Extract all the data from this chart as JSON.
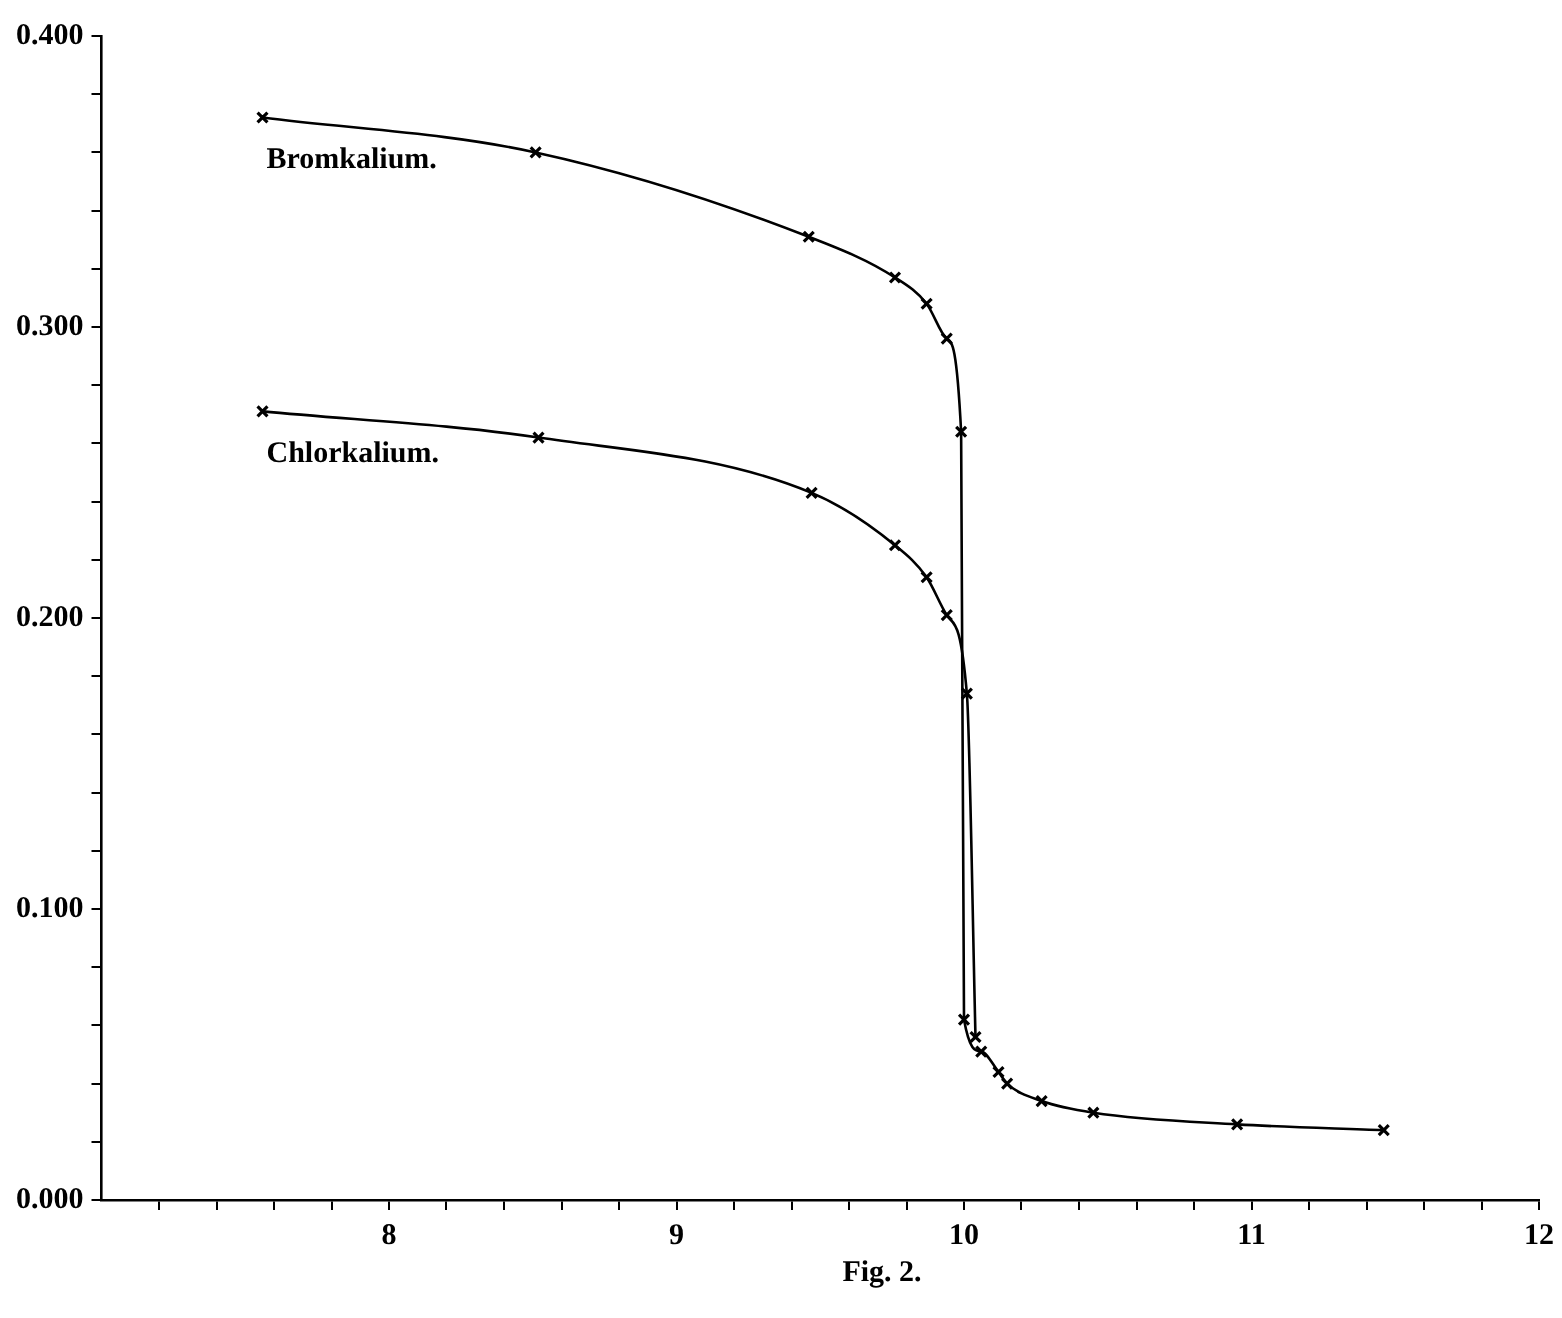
{
  "chart_data": {
    "type": "line",
    "annotations": [
      "Fig. 2."
    ],
    "xlim": [
      7,
      12
    ],
    "xticks": [
      {
        "value": 7.2,
        "label": null
      },
      {
        "value": 7.4,
        "label": null
      },
      {
        "value": 7.6,
        "label": null
      },
      {
        "value": 7.8,
        "label": null
      },
      8,
      {
        "value": 8.2,
        "label": null
      },
      {
        "value": 8.4,
        "label": null
      },
      {
        "value": 8.6,
        "label": null
      },
      {
        "value": 8.8,
        "label": null
      },
      9,
      {
        "value": 9.2,
        "label": null
      },
      {
        "value": 9.4,
        "label": null
      },
      {
        "value": 9.6,
        "label": null
      },
      {
        "value": 9.8,
        "label": null
      },
      10,
      {
        "value": 10.2,
        "label": null
      },
      {
        "value": 10.4,
        "label": null
      },
      {
        "value": 10.6,
        "label": null
      },
      {
        "value": 10.8,
        "label": null
      },
      11,
      {
        "value": 11.2,
        "label": null
      },
      {
        "value": 11.4,
        "label": null
      },
      {
        "value": 11.6,
        "label": null
      },
      {
        "value": 11.8,
        "label": null
      },
      12
    ],
    "ylim": [
      0,
      0.4
    ],
    "yticks": [
      {
        "value": 0,
        "label": "0.000"
      },
      {
        "value": 0.02,
        "label": null
      },
      {
        "value": 0.04,
        "label": null
      },
      {
        "value": 0.06,
        "label": null
      },
      {
        "value": 0.08,
        "label": null
      },
      {
        "value": 0.1,
        "label": "0.100"
      },
      {
        "value": 0.12,
        "label": null
      },
      {
        "value": 0.14,
        "label": null
      },
      {
        "value": 0.16,
        "label": null
      },
      {
        "value": 0.18,
        "label": null
      },
      {
        "value": 0.2,
        "label": "0.200"
      },
      {
        "value": 0.22,
        "label": null
      },
      {
        "value": 0.24,
        "label": null
      },
      {
        "value": 0.26,
        "label": null
      },
      {
        "value": 0.28,
        "label": null
      },
      {
        "value": 0.3,
        "label": "0.300"
      },
      {
        "value": 0.32,
        "label": null
      },
      {
        "value": 0.34,
        "label": null
      },
      {
        "value": 0.36,
        "label": null
      },
      {
        "value": 0.38,
        "label": null
      },
      {
        "value": 0.4,
        "label": "0.400"
      }
    ],
    "grid": false,
    "legend": false,
    "marker": "cross",
    "line_style": "solid",
    "series": [
      {
        "name": "Bromkalium.",
        "color": "#000000",
        "x": [
          7.56,
          8.51,
          9.46,
          9.76,
          9.87,
          9.94,
          9.99,
          10.0,
          10.06,
          10.12,
          10.15,
          10.27,
          10.45,
          10.95,
          11.46
        ],
        "values": [
          0.372,
          0.36,
          0.331,
          0.317,
          0.308,
          0.296,
          0.264,
          0.062,
          0.051,
          0.044,
          0.04,
          0.034,
          0.03,
          0.026,
          0.024
        ]
      },
      {
        "name": "Chlorkalium.",
        "color": "#000000",
        "x": [
          7.56,
          8.52,
          9.47,
          9.76,
          9.87,
          9.94,
          10.01,
          10.04
        ],
        "values": [
          0.271,
          0.262,
          0.243,
          0.225,
          0.214,
          0.201,
          0.174,
          0.056
        ]
      }
    ]
  }
}
